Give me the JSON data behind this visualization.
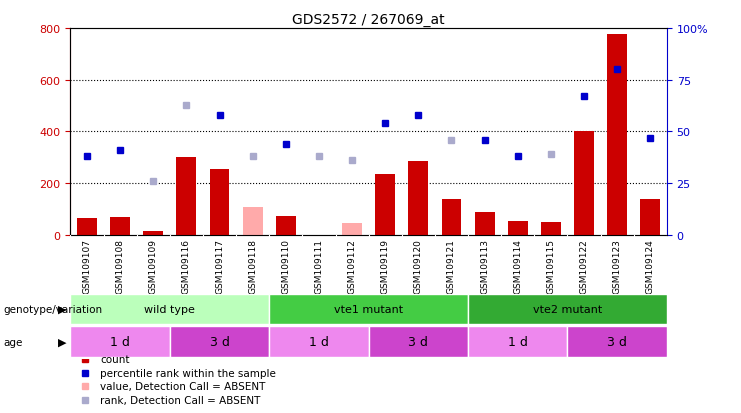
{
  "title": "GDS2572 / 267069_at",
  "samples": [
    "GSM109107",
    "GSM109108",
    "GSM109109",
    "GSM109116",
    "GSM109117",
    "GSM109118",
    "GSM109110",
    "GSM109111",
    "GSM109112",
    "GSM109119",
    "GSM109120",
    "GSM109121",
    "GSM109113",
    "GSM109114",
    "GSM109115",
    "GSM109122",
    "GSM109123",
    "GSM109124"
  ],
  "counts": [
    65,
    70,
    15,
    300,
    255,
    null,
    75,
    null,
    null,
    235,
    285,
    140,
    90,
    55,
    50,
    400,
    775,
    140
  ],
  "counts_absent": [
    null,
    null,
    null,
    null,
    null,
    110,
    null,
    null,
    45,
    null,
    null,
    null,
    null,
    null,
    null,
    null,
    null,
    null
  ],
  "ranks_pct": [
    38,
    41,
    null,
    null,
    58,
    null,
    44,
    null,
    null,
    54,
    58,
    null,
    46,
    38,
    null,
    67,
    80,
    47
  ],
  "ranks_absent_pct": [
    null,
    null,
    26,
    63,
    null,
    38,
    null,
    38,
    36,
    null,
    null,
    46,
    null,
    null,
    39,
    null,
    null,
    null
  ],
  "ylim_left": [
    0,
    800
  ],
  "ylim_right": [
    0,
    100
  ],
  "yticks_left": [
    0,
    200,
    400,
    600,
    800
  ],
  "yticks_right": [
    0,
    25,
    50,
    75,
    100
  ],
  "bar_color": "#cc0000",
  "bar_absent_color": "#ffaaaa",
  "dot_color": "#0000cc",
  "dot_absent_color": "#aaaacc",
  "left_axis_color": "#cc0000",
  "right_axis_color": "#0000cc",
  "grid_color": "#000000",
  "xtick_bg_color": "#c0c0c0",
  "genotype_groups": [
    {
      "label": "wild type",
      "start": 0,
      "end": 6,
      "color": "#bbffbb"
    },
    {
      "label": "vte1 mutant",
      "start": 6,
      "end": 12,
      "color": "#44cc44"
    },
    {
      "label": "vte2 mutant",
      "start": 12,
      "end": 18,
      "color": "#33aa33"
    }
  ],
  "age_groups": [
    {
      "label": "1 d",
      "start": 0,
      "end": 3,
      "color": "#ee88ee"
    },
    {
      "label": "3 d",
      "start": 3,
      "end": 6,
      "color": "#cc44cc"
    },
    {
      "label": "1 d",
      "start": 6,
      "end": 9,
      "color": "#ee88ee"
    },
    {
      "label": "3 d",
      "start": 9,
      "end": 12,
      "color": "#cc44cc"
    },
    {
      "label": "1 d",
      "start": 12,
      "end": 15,
      "color": "#ee88ee"
    },
    {
      "label": "3 d",
      "start": 15,
      "end": 18,
      "color": "#cc44cc"
    }
  ],
  "legend_items": [
    {
      "label": "count",
      "color": "#cc0000"
    },
    {
      "label": "percentile rank within the sample",
      "color": "#0000cc"
    },
    {
      "label": "value, Detection Call = ABSENT",
      "color": "#ffaaaa"
    },
    {
      "label": "rank, Detection Call = ABSENT",
      "color": "#aaaacc"
    }
  ],
  "xlabel_genotype": "genotype/variation",
  "xlabel_age": "age",
  "background_color": "#ffffff"
}
